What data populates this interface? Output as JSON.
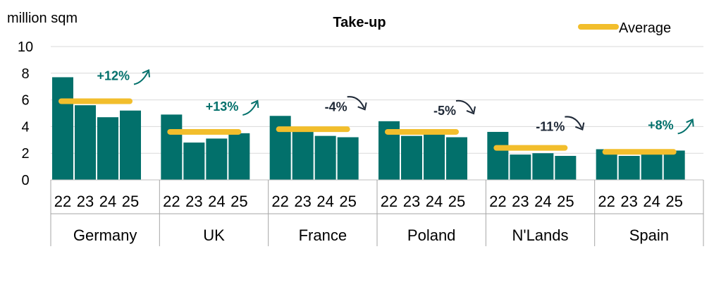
{
  "chart_data": {
    "type": "bar",
    "title": "Take-up",
    "ylabel": "million sqm",
    "xlabel": "",
    "ylim": [
      0,
      10
    ],
    "yticks": [
      0,
      2,
      4,
      6,
      8,
      10
    ],
    "grid": true,
    "legend": {
      "label": "Average",
      "position": "top-right"
    },
    "years": [
      "22",
      "23",
      "24",
      "25"
    ],
    "colors": {
      "bar": "#02706B",
      "average": "#F2BE2C",
      "positive": "#02706B",
      "negative": "#1F2937",
      "grid": "#D9D9D9"
    },
    "groups": [
      {
        "name": "Germany",
        "values": [
          7.7,
          5.6,
          4.7,
          5.2
        ],
        "average": 5.9,
        "change": "+12%",
        "direction": "up"
      },
      {
        "name": "UK",
        "values": [
          4.9,
          2.8,
          3.1,
          3.5
        ],
        "average": 3.6,
        "change": "+13%",
        "direction": "up"
      },
      {
        "name": "France",
        "values": [
          4.8,
          3.9,
          3.3,
          3.2
        ],
        "average": 3.8,
        "change": "-4%",
        "direction": "down"
      },
      {
        "name": "Poland",
        "values": [
          4.4,
          3.3,
          3.4,
          3.2
        ],
        "average": 3.6,
        "change": "-5%",
        "direction": "down"
      },
      {
        "name": "N'Lands",
        "values": [
          3.6,
          1.9,
          2.0,
          1.8
        ],
        "average": 2.4,
        "change": "-11%",
        "direction": "down"
      },
      {
        "name": "Spain",
        "values": [
          2.3,
          1.8,
          2.1,
          2.2
        ],
        "average": 2.1,
        "change": "+8%",
        "direction": "up"
      }
    ]
  }
}
